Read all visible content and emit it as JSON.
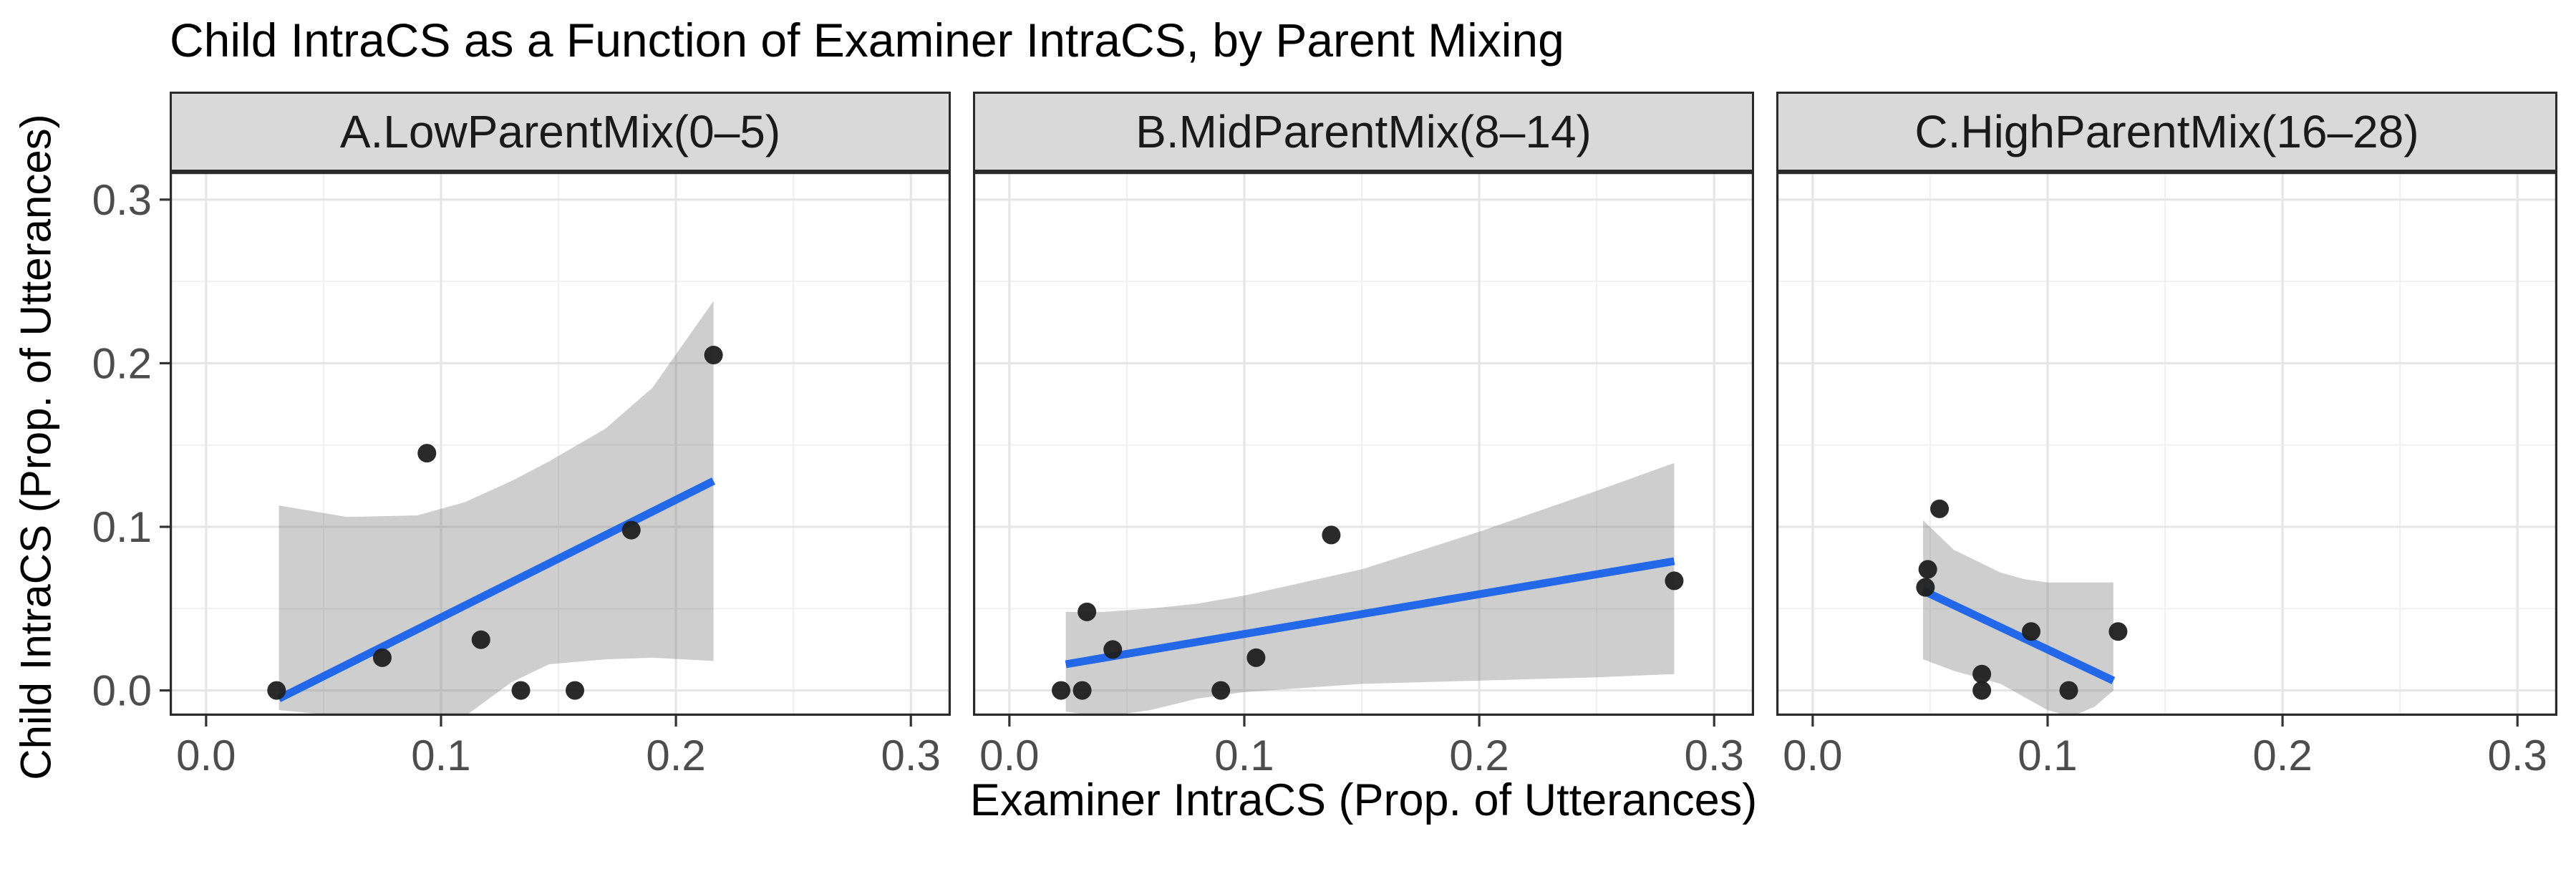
{
  "title": "Child IntraCS as a Function of Examiner IntraCS, by Parent Mixing",
  "axes": {
    "x_title": "Examiner IntraCS (Prop. of Utterances)",
    "y_title": "Child IntraCS (Prop. of Utterances)",
    "x_tick_labels": [
      "0.0",
      "0.1",
      "0.2",
      "0.3"
    ],
    "y_tick_labels": [
      "0.0",
      "0.1",
      "0.2",
      "0.3"
    ]
  },
  "colors": {
    "smooth_line": "#2368e8",
    "ribbon_fill": "rgba(115,115,115,0.35)",
    "point_fill": "#1f1f1f",
    "grid_major": "#e6e6e6",
    "grid_minor": "#f0f0f0",
    "panel_border": "#2b2b2b",
    "strip_background": "#d9d9d9",
    "tick_label": "#4d4d4d",
    "tick_mark": "#333333"
  },
  "chart_data": {
    "type": "scatter",
    "title": "Child IntraCS as a Function of Examiner IntraCS, by Parent Mixing",
    "xlabel": "Examiner IntraCS (Prop. of Utterances)",
    "ylabel": "Child IntraCS (Prop. of Utterances)",
    "xlim": [
      -0.0155,
      0.317
    ],
    "ylim": [
      -0.0155,
      0.317
    ],
    "x_ticks": [
      0.0,
      0.1,
      0.2,
      0.3
    ],
    "y_ticks": [
      0.0,
      0.1,
      0.2,
      0.3
    ],
    "x_minor_ticks": [
      0.05,
      0.15,
      0.25
    ],
    "y_minor_ticks": [
      0.05,
      0.15,
      0.25
    ],
    "grid": true,
    "legend": "none",
    "smooth": {
      "method": "lm",
      "ci": true
    },
    "panels": [
      {
        "label": "A.LowParentMix(0–5)",
        "points": [
          [
            0.03,
            0.0
          ],
          [
            0.075,
            0.02
          ],
          [
            0.094,
            0.145
          ],
          [
            0.117,
            0.031
          ],
          [
            0.134,
            0.0
          ],
          [
            0.157,
            0.0
          ],
          [
            0.181,
            0.098
          ],
          [
            0.216,
            0.205
          ]
        ],
        "line": {
          "x1": 0.031,
          "y1": -0.005,
          "x2": 0.216,
          "y2": 0.128
        },
        "ribbon": {
          "x": [
            0.031,
            0.06,
            0.09,
            0.11,
            0.13,
            0.146,
            0.17,
            0.19,
            0.216
          ],
          "upper": [
            0.113,
            0.106,
            0.107,
            0.115,
            0.128,
            0.14,
            0.16,
            0.185,
            0.238
          ],
          "lower": [
            -0.012,
            -0.016,
            -0.016,
            -0.016,
            0.005,
            0.016,
            0.019,
            0.02,
            0.018
          ]
        }
      },
      {
        "label": "B.MidParentMix(8–14)",
        "points": [
          [
            0.022,
            0.0
          ],
          [
            0.031,
            0.0
          ],
          [
            0.033,
            0.048
          ],
          [
            0.044,
            0.025
          ],
          [
            0.09,
            0.0
          ],
          [
            0.105,
            0.02
          ],
          [
            0.137,
            0.095
          ],
          [
            0.283,
            0.067
          ]
        ],
        "line": {
          "x1": 0.024,
          "y1": 0.016,
          "x2": 0.283,
          "y2": 0.079
        },
        "ribbon": {
          "x": [
            0.024,
            0.04,
            0.06,
            0.08,
            0.1,
            0.15,
            0.2,
            0.25,
            0.283
          ],
          "upper": [
            0.048,
            0.048,
            0.05,
            0.053,
            0.058,
            0.074,
            0.097,
            0.122,
            0.139
          ],
          "lower": [
            -0.013,
            -0.016,
            -0.012,
            -0.005,
            -0.001,
            0.004,
            0.006,
            0.008,
            0.01
          ]
        }
      },
      {
        "label": "C.HighParentMix(16–28)",
        "points": [
          [
            0.054,
            0.111
          ],
          [
            0.049,
            0.074
          ],
          [
            0.048,
            0.063
          ],
          [
            0.072,
            0.01
          ],
          [
            0.072,
            0.0
          ],
          [
            0.093,
            0.036
          ],
          [
            0.109,
            0.0
          ],
          [
            0.13,
            0.036
          ]
        ],
        "line": {
          "x1": 0.047,
          "y1": 0.061,
          "x2": 0.128,
          "y2": 0.006
        },
        "ribbon": {
          "x": [
            0.047,
            0.06,
            0.08,
            0.09,
            0.1,
            0.11,
            0.12,
            0.128
          ],
          "upper": [
            0.104,
            0.086,
            0.072,
            0.068,
            0.066,
            0.066,
            0.066,
            0.066
          ],
          "lower": [
            0.019,
            0.012,
            0.004,
            -0.004,
            -0.012,
            -0.016,
            -0.01,
            0.0
          ]
        }
      }
    ]
  }
}
